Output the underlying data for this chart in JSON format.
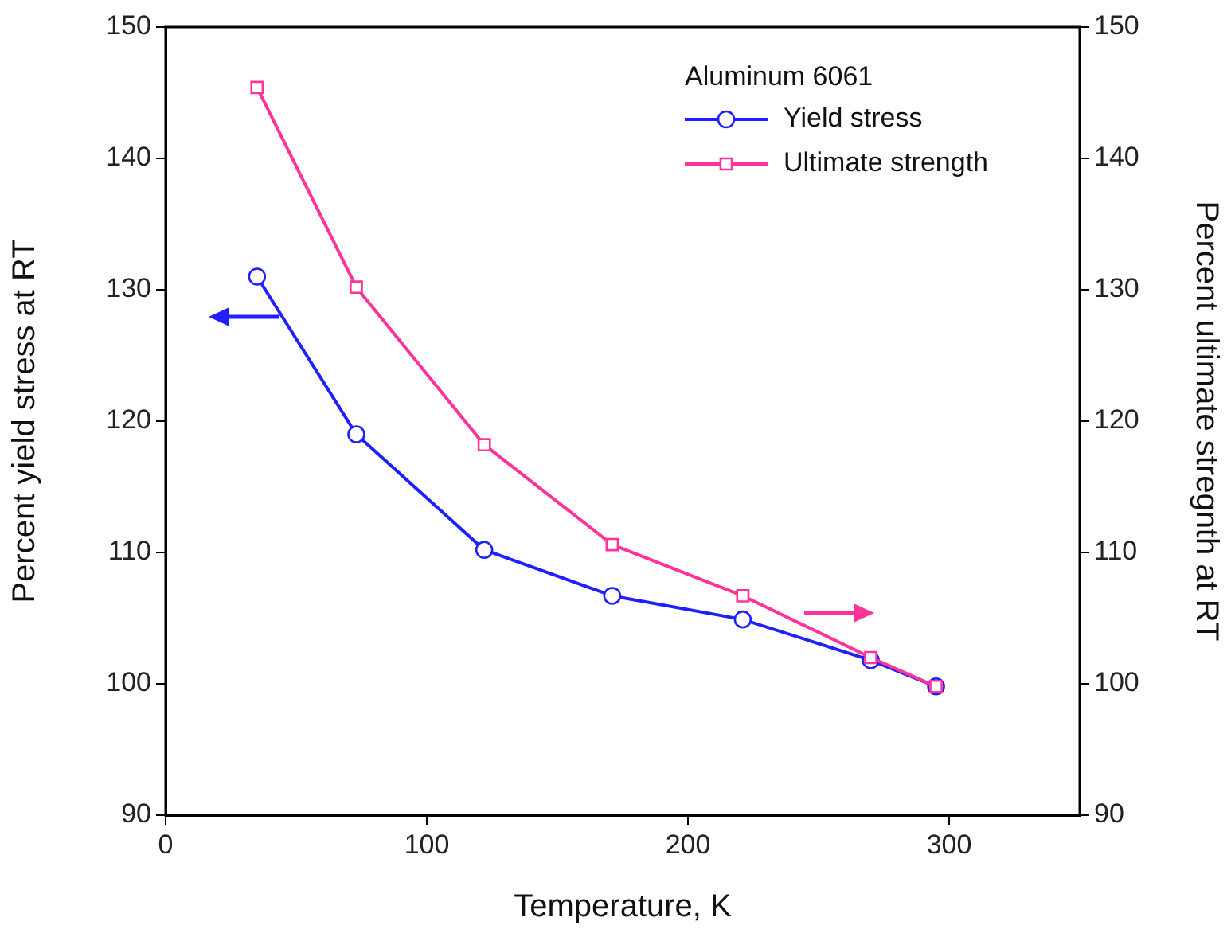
{
  "chart_data": {
    "type": "line",
    "xlabel": "Temperature, K",
    "ylabel": "Percent yield stress at RT",
    "y2label": "Percent ultimate stregnth at RT",
    "legend_title": "Aluminum 6061",
    "legend": "top right",
    "grid": false,
    "xlim": [
      0,
      350
    ],
    "xticks": [
      0,
      100,
      200,
      300
    ],
    "ylim": [
      90,
      150
    ],
    "yticks": [
      90,
      100,
      110,
      120,
      130,
      140,
      150
    ],
    "y2lim": [
      90,
      150
    ],
    "y2ticks": [
      90,
      100,
      110,
      120,
      130,
      140,
      150
    ],
    "series": [
      {
        "name": "Yield stress",
        "color": "#2020ff",
        "marker": "circle",
        "x": [
          35,
          73,
          122,
          171,
          221,
          270,
          295
        ],
        "values": [
          131,
          119,
          110.2,
          106.7,
          104.9,
          101.8,
          99.8
        ]
      },
      {
        "name": "Ultimate strength",
        "color": "#ff3399",
        "marker": "square",
        "axis": "y2",
        "x": [
          35,
          73,
          122,
          171,
          221,
          270,
          295
        ],
        "values": [
          145.4,
          130.2,
          118.2,
          110.6,
          106.7,
          102,
          99.8
        ]
      }
    ]
  }
}
